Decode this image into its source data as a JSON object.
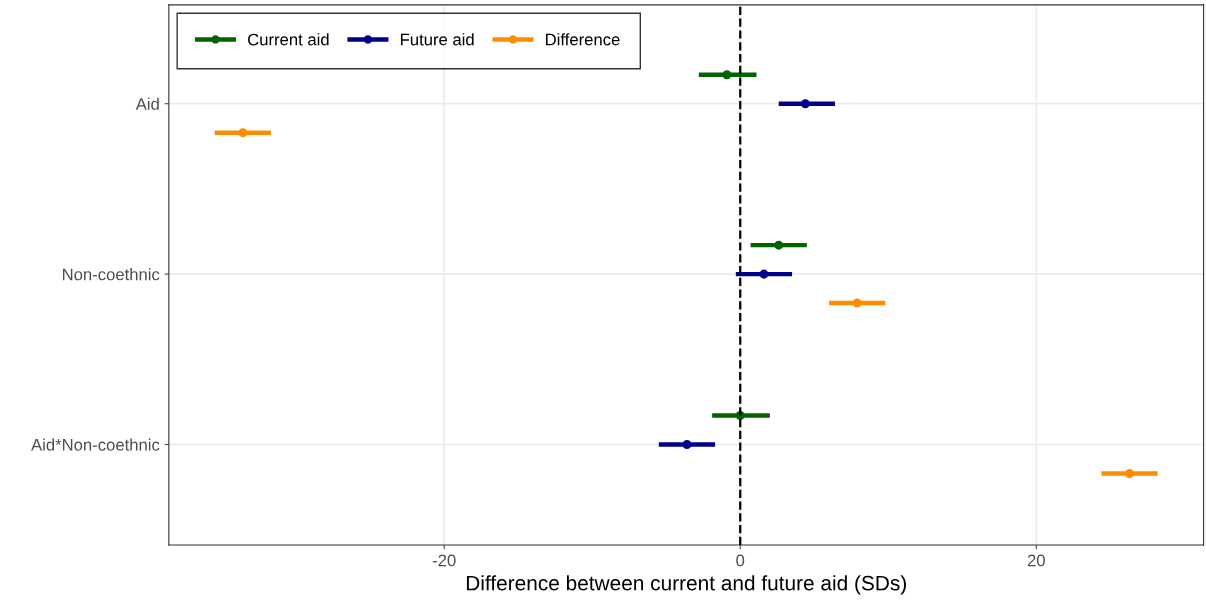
{
  "chart_data": {
    "type": "scatter",
    "orientation": "horizontal",
    "xlabel": "Difference between current and future aid (SDs)",
    "categories": [
      "Aid",
      "Non-coethnic",
      "Aid*Non-coethnic"
    ],
    "series": [
      {
        "name": "Current aid",
        "color": "#006400",
        "values": [
          -0.9,
          2.6,
          0.0
        ],
        "errors": [
          [
            -2.8,
            1.1
          ],
          [
            0.7,
            4.5
          ],
          [
            -1.9,
            2.0
          ]
        ]
      },
      {
        "name": "Future aid",
        "color": "#00008b",
        "values": [
          4.4,
          1.6,
          -3.6
        ],
        "errors": [
          [
            2.6,
            6.4
          ],
          [
            -0.3,
            3.5
          ],
          [
            -5.5,
            -1.7
          ]
        ]
      },
      {
        "name": "Difference",
        "color": "#ff8c00",
        "values": [
          -33.6,
          7.9,
          26.3
        ],
        "errors": [
          [
            -35.5,
            -31.7
          ],
          [
            6.0,
            9.8
          ],
          [
            24.4,
            28.2
          ]
        ]
      }
    ],
    "xlim": [
      -38.6,
      31.3
    ],
    "xticks": [
      {
        "value": -20,
        "label": "-20"
      },
      0,
      20
    ],
    "ref_lines": [
      {
        "axis": "x",
        "value": 0,
        "color": "#000000",
        "line_style": "dashed"
      }
    ],
    "grid": true,
    "legend": "top left",
    "marker": "circle",
    "line_style": "solid"
  }
}
